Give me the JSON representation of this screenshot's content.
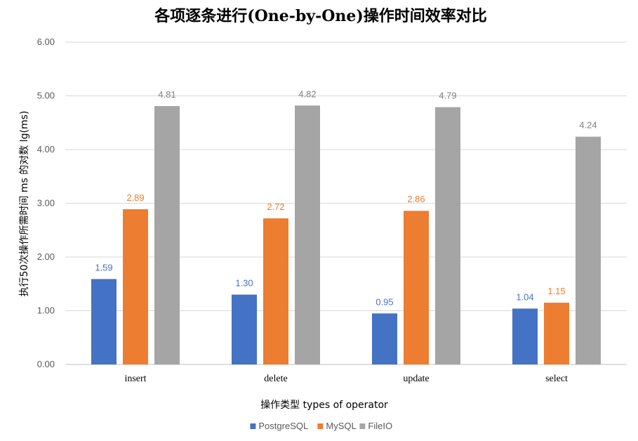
{
  "chart_data": {
    "type": "bar",
    "title": "各项逐条进行(One-by-One)操作时间效率对比",
    "xlabel": "操作类型 types of operator",
    "ylabel": "执行50次操作所需时间 ms 的对数 lg(ms)",
    "categories": [
      "insert",
      "delete",
      "update",
      "select"
    ],
    "ylim": [
      0,
      6
    ],
    "yticks": [
      "0.00",
      "1.00",
      "2.00",
      "3.00",
      "4.00",
      "5.00",
      "6.00"
    ],
    "grid": true,
    "legend_position": "bottom",
    "series": [
      {
        "name": "PostgreSQL",
        "color": "#4472C4",
        "values": [
          1.59,
          1.3,
          0.95,
          1.04
        ],
        "labels": [
          "1.59",
          "1.30",
          "0.95",
          "1.04"
        ]
      },
      {
        "name": "MySQL",
        "color": "#ED7D31",
        "values": [
          2.89,
          2.72,
          2.86,
          1.15
        ],
        "labels": [
          "2.89",
          "2.72",
          "2.86",
          "1.15"
        ]
      },
      {
        "name": "FileIO",
        "color": "#A5A5A5",
        "values": [
          4.81,
          4.82,
          4.79,
          4.24
        ],
        "labels": [
          "4.81",
          "4.82",
          "4.79",
          "4.24"
        ]
      }
    ]
  }
}
